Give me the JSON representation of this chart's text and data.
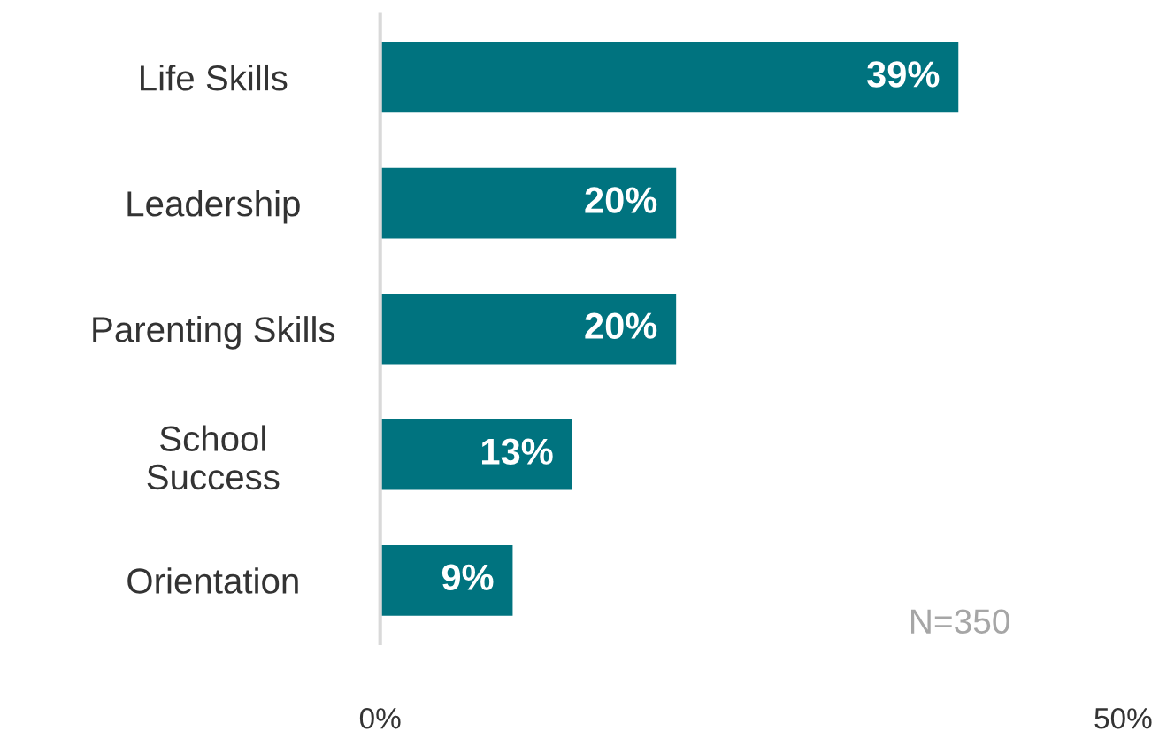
{
  "chart_data": {
    "type": "bar",
    "orientation": "horizontal",
    "categories": [
      "Life Skills",
      "Leadership",
      "Parenting Skills",
      "School\nSuccess",
      "Orientation"
    ],
    "values": [
      39,
      20,
      20,
      13,
      9
    ],
    "value_labels": [
      "39%",
      "20%",
      "20%",
      "13%",
      "9%"
    ],
    "color": "#00737f",
    "xlim": [
      0,
      50
    ],
    "xticks": [
      {
        "value": 0,
        "label": "0%"
      },
      {
        "value": 50,
        "label": "50%"
      }
    ],
    "annotations": [
      "N=350"
    ],
    "grid": false,
    "legend": false
  }
}
